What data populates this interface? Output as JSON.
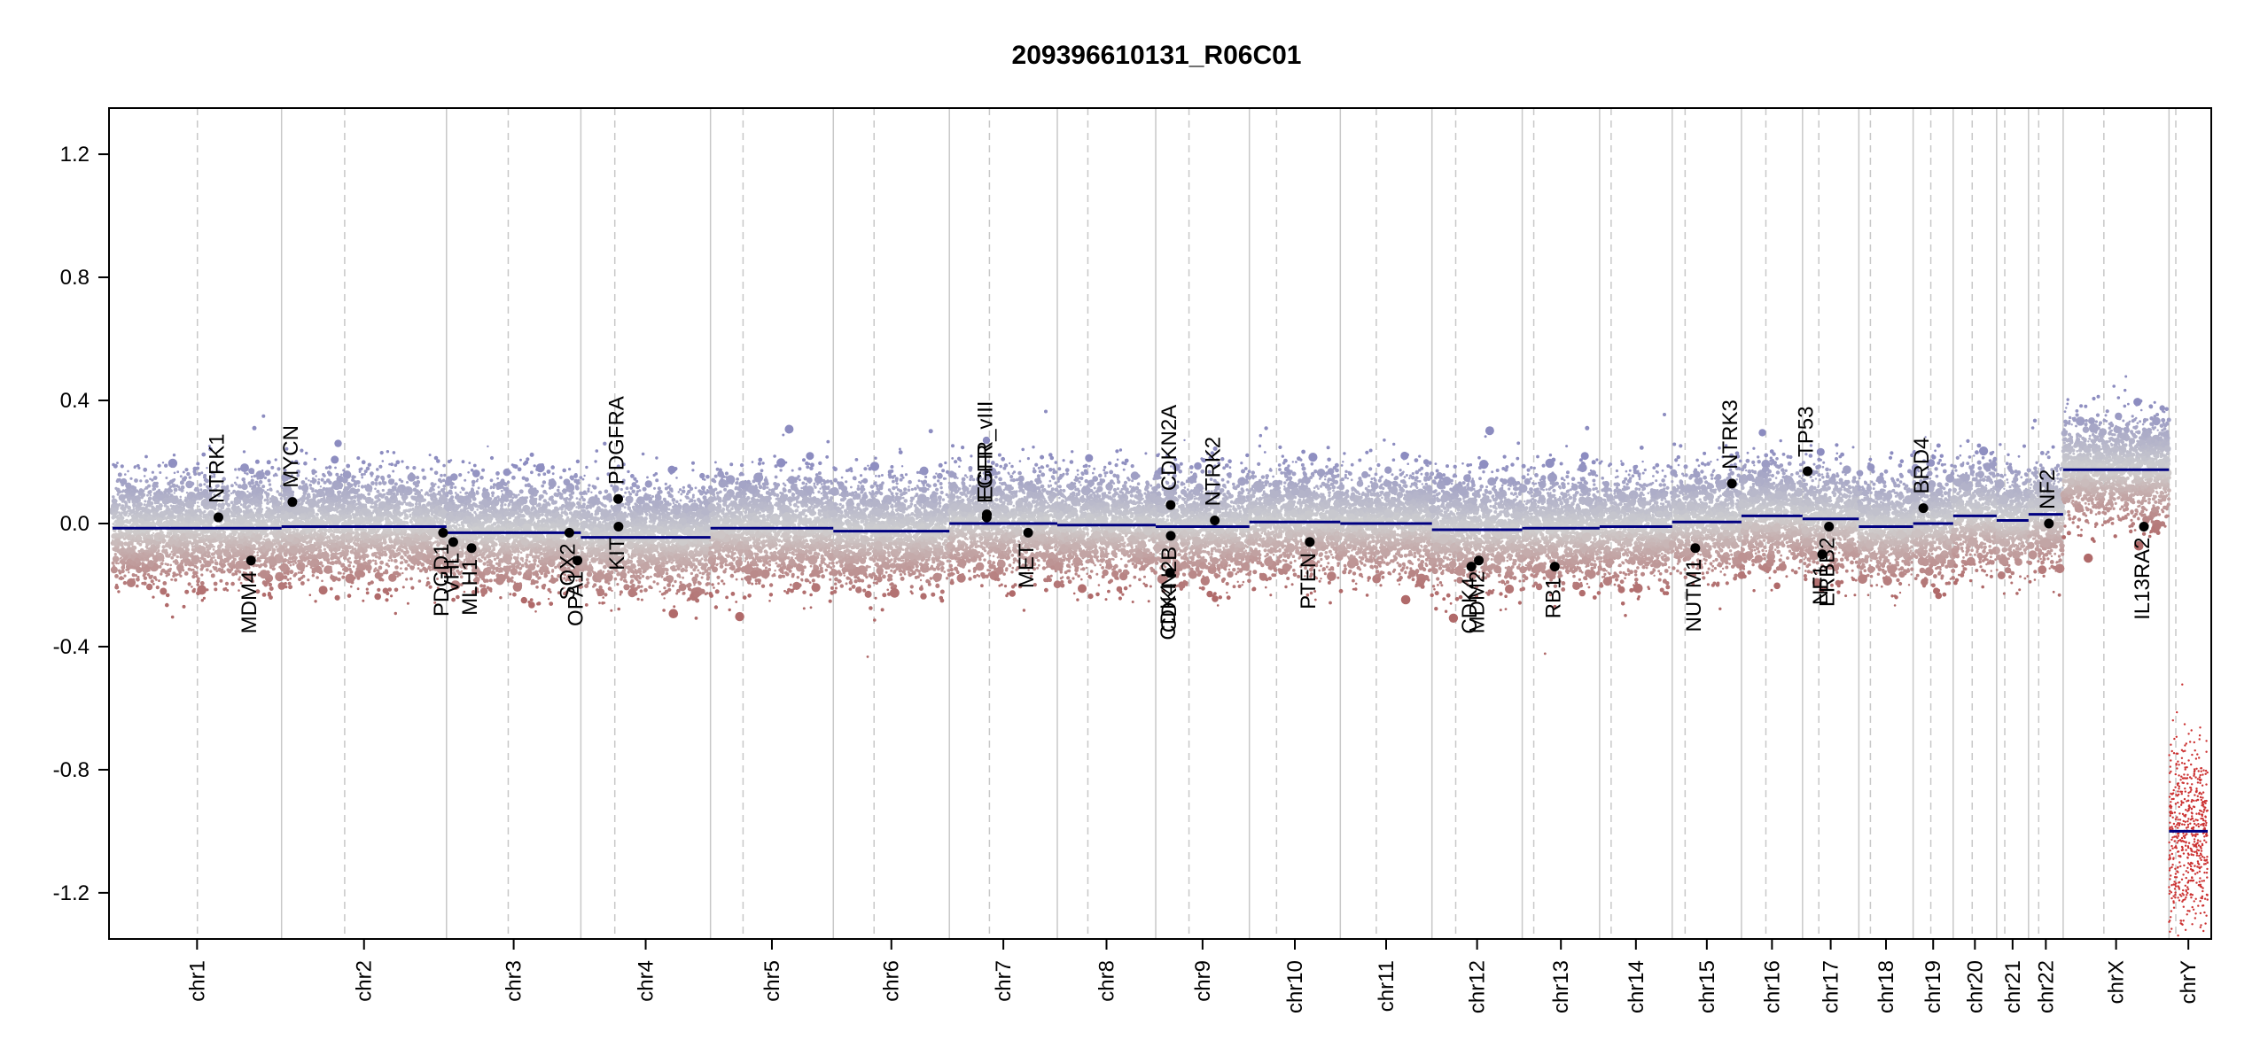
{
  "chart_data": {
    "type": "scatter",
    "title": "209396610131_R06C01",
    "xlabel": "",
    "ylabel": "",
    "ylim": [
      -1.35,
      1.35
    ],
    "yticks": [
      "1.2",
      "0.8",
      "0.4",
      "0.0",
      "-0.4",
      "-0.8",
      "-1.2"
    ],
    "ytick_values": [
      1.2,
      0.8,
      0.4,
      0.0,
      -0.4,
      -0.8,
      -1.2
    ],
    "chromosomes": [
      {
        "name": "chr1",
        "length": 249,
        "centromere": 125,
        "segment": -0.015
      },
      {
        "name": "chr2",
        "length": 243,
        "centromere": 93,
        "segment": -0.01
      },
      {
        "name": "chr3",
        "length": 198,
        "centromere": 91,
        "segment": -0.03
      },
      {
        "name": "chr4",
        "length": 191,
        "centromere": 50,
        "segment": -0.045
      },
      {
        "name": "chr5",
        "length": 181,
        "centromere": 48,
        "segment": -0.015
      },
      {
        "name": "chr6",
        "length": 171,
        "centromere": 60,
        "segment": -0.025
      },
      {
        "name": "chr7",
        "length": 159,
        "centromere": 59,
        "segment": 0.0
      },
      {
        "name": "chr8",
        "length": 145,
        "centromere": 45,
        "segment": -0.005
      },
      {
        "name": "chr9",
        "length": 138,
        "centromere": 49,
        "segment": -0.01
      },
      {
        "name": "chr10",
        "length": 134,
        "centromere": 40,
        "segment": 0.005
      },
      {
        "name": "chr11",
        "length": 135,
        "centromere": 53,
        "segment": 0.0
      },
      {
        "name": "chr12",
        "length": 133,
        "centromere": 35,
        "segment": -0.02
      },
      {
        "name": "chr13",
        "length": 114,
        "centromere": 17,
        "segment": -0.015
      },
      {
        "name": "chr14",
        "length": 107,
        "centromere": 17,
        "segment": -0.01
      },
      {
        "name": "chr15",
        "length": 102,
        "centromere": 19,
        "segment": 0.005
      },
      {
        "name": "chr16",
        "length": 90,
        "centromere": 36,
        "segment": 0.025
      },
      {
        "name": "chr17",
        "length": 83,
        "centromere": 24,
        "segment": 0.015
      },
      {
        "name": "chr18",
        "length": 80,
        "centromere": 17,
        "segment": -0.01
      },
      {
        "name": "chr19",
        "length": 59,
        "centromere": 26,
        "segment": 0.0
      },
      {
        "name": "chr20",
        "length": 64,
        "centromere": 28,
        "segment": 0.025
      },
      {
        "name": "chr21",
        "length": 47,
        "centromere": 12,
        "segment": 0.01
      },
      {
        "name": "chr22",
        "length": 51,
        "centromere": 15,
        "segment": 0.03
      },
      {
        "name": "chrX",
        "length": 156,
        "centromere": 60,
        "segment": 0.175
      },
      {
        "name": "chrY",
        "length": 57,
        "centromere": 10,
        "segment": -1.0
      }
    ],
    "genes": [
      {
        "name": "NTRK1",
        "chrom": "chr1",
        "pos": 156,
        "value": 0.02,
        "label_side": "up"
      },
      {
        "name": "MDM4",
        "chrom": "chr1",
        "pos": 204,
        "value": -0.12,
        "label_side": "down"
      },
      {
        "name": "MYCN",
        "chrom": "chr2",
        "pos": 16,
        "value": 0.07,
        "label_side": "up"
      },
      {
        "name": "PDGD1",
        "chrom": "chr2",
        "pos": 238,
        "value": -0.03,
        "label_side": "down"
      },
      {
        "name": "VHL",
        "chrom": "chr3",
        "pos": 10,
        "value": -0.06,
        "label_side": "down"
      },
      {
        "name": "MLH1",
        "chrom": "chr3",
        "pos": 37,
        "value": -0.08,
        "label_side": "down"
      },
      {
        "name": "SOX2",
        "chrom": "chr3",
        "pos": 181,
        "value": -0.03,
        "label_side": "down"
      },
      {
        "name": "OPA1",
        "chrom": "chr3",
        "pos": 193,
        "value": -0.12,
        "label_side": "down"
      },
      {
        "name": "PDGFRA",
        "chrom": "chr4",
        "pos": 55,
        "value": 0.08,
        "label_side": "up"
      },
      {
        "name": "KIT",
        "chrom": "chr4",
        "pos": 55.5,
        "value": -0.01,
        "label_side": "down"
      },
      {
        "name": "EGFR",
        "chrom": "chr7",
        "pos": 55,
        "value": 0.02,
        "label_side": "up"
      },
      {
        "name": "EGFR_vIII",
        "chrom": "chr7",
        "pos": 55.2,
        "value": 0.03,
        "label_side": "up"
      },
      {
        "name": "MET",
        "chrom": "chr7",
        "pos": 116,
        "value": -0.03,
        "label_side": "down"
      },
      {
        "name": "CDKN2A",
        "chrom": "chr9",
        "pos": 22,
        "value": 0.06,
        "label_side": "up"
      },
      {
        "name": "CDKN2B",
        "chrom": "chr9",
        "pos": 22.2,
        "value": -0.04,
        "label_side": "down"
      },
      {
        "name": "CDK4",
        "chrom": "chr9",
        "pos": 21,
        "value": -0.16,
        "label_side": "down"
      },
      {
        "name": "NTRK2",
        "chrom": "chr9",
        "pos": 87,
        "value": 0.01,
        "label_side": "up"
      },
      {
        "name": "PTEN",
        "chrom": "chr10",
        "pos": 89,
        "value": -0.06,
        "label_side": "down"
      },
      {
        "name": "CDK4",
        "chrom": "chr12",
        "pos": 58,
        "value": -0.14,
        "label_side": "down"
      },
      {
        "name": "MDM2",
        "chrom": "chr12",
        "pos": 69,
        "value": -0.12,
        "label_side": "down"
      },
      {
        "name": "RB1",
        "chrom": "chr13",
        "pos": 48,
        "value": -0.14,
        "label_side": "down"
      },
      {
        "name": "NUTM1",
        "chrom": "chr15",
        "pos": 34,
        "value": -0.08,
        "label_side": "down"
      },
      {
        "name": "NTRK3",
        "chrom": "chr15",
        "pos": 88,
        "value": 0.13,
        "label_side": "up"
      },
      {
        "name": "TP53",
        "chrom": "chr17",
        "pos": 7.5,
        "value": 0.17,
        "label_side": "up"
      },
      {
        "name": "NF1",
        "chrom": "chr17",
        "pos": 29,
        "value": -0.1,
        "label_side": "down"
      },
      {
        "name": "ERBB2",
        "chrom": "chr17",
        "pos": 39,
        "value": -0.01,
        "label_side": "down"
      },
      {
        "name": "BRD4",
        "chrom": "chr19",
        "pos": 15,
        "value": 0.05,
        "label_side": "up"
      },
      {
        "name": "NF2",
        "chrom": "chr22",
        "pos": 30,
        "value": 0.0,
        "label_side": "up"
      },
      {
        "name": "IL13RA2",
        "chrom": "chrX",
        "pos": 119,
        "value": -0.01,
        "label_side": "down"
      }
    ],
    "colors": {
      "gain": "#8c8cc0",
      "neutral": "#d0d0d0",
      "loss": "#b06a6a",
      "segment": "#000080",
      "gene_point": "#000000",
      "chrom_line": "#c8c8c8",
      "centromere_line": "#c8c8c8",
      "chrY_points": "#cc3333"
    },
    "grid": false,
    "legend": "none"
  }
}
